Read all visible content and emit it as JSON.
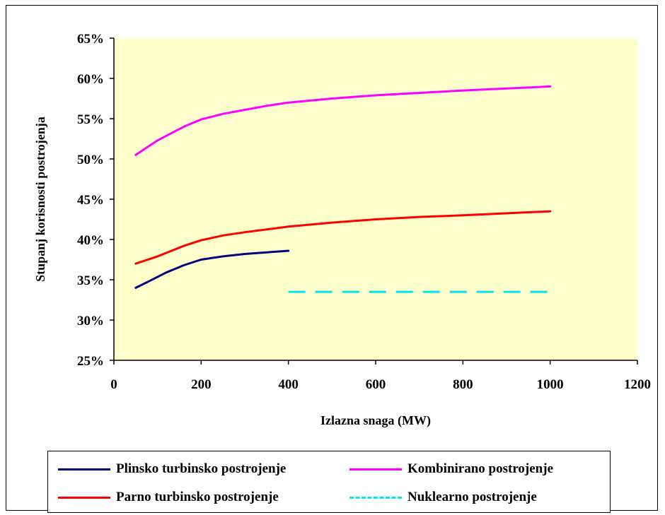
{
  "chart_data": {
    "type": "line",
    "xlabel": "Izlazna snaga (MW)",
    "ylabel": "Stupanj korisnosti postrojenja",
    "xlim": [
      0,
      1200
    ],
    "ylim": [
      25,
      65
    ],
    "x_ticks": [
      0,
      200,
      400,
      600,
      800,
      1000,
      1200
    ],
    "y_ticks": [
      25,
      30,
      35,
      40,
      45,
      50,
      55,
      60,
      65
    ],
    "y_tick_labels": [
      "25%",
      "30%",
      "35%",
      "40%",
      "45%",
      "50%",
      "55%",
      "60%",
      "65%"
    ],
    "plot_background": "#ffffcc",
    "grid": false,
    "legend_position": "bottom",
    "series": [
      {
        "name": "Plinsko turbinsko postrojenje",
        "color": "#000080",
        "dash": false,
        "points": [
          [
            50,
            34.0
          ],
          [
            80,
            34.8
          ],
          [
            120,
            35.9
          ],
          [
            160,
            36.8
          ],
          [
            200,
            37.5
          ],
          [
            250,
            37.9
          ],
          [
            300,
            38.2
          ],
          [
            350,
            38.4
          ],
          [
            400,
            38.6
          ]
        ]
      },
      {
        "name": "Kombinirano postrojenje",
        "color": "#ff00ff",
        "dash": false,
        "points": [
          [
            50,
            50.5
          ],
          [
            100,
            52.3
          ],
          [
            160,
            54.0
          ],
          [
            200,
            54.9
          ],
          [
            250,
            55.6
          ],
          [
            300,
            56.1
          ],
          [
            350,
            56.6
          ],
          [
            400,
            57.0
          ],
          [
            500,
            57.5
          ],
          [
            600,
            57.9
          ],
          [
            700,
            58.2
          ],
          [
            800,
            58.5
          ],
          [
            1000,
            59.0
          ]
        ]
      },
      {
        "name": "Parno turbinsko postrojenje",
        "color": "#ff0000",
        "dash": false,
        "points": [
          [
            50,
            37.0
          ],
          [
            100,
            37.9
          ],
          [
            160,
            39.2
          ],
          [
            200,
            39.9
          ],
          [
            250,
            40.5
          ],
          [
            300,
            40.9
          ],
          [
            400,
            41.6
          ],
          [
            500,
            42.1
          ],
          [
            600,
            42.5
          ],
          [
            700,
            42.8
          ],
          [
            800,
            43.0
          ],
          [
            1000,
            43.5
          ]
        ]
      },
      {
        "name": "Nuklearno postrojenje",
        "color": "#00e5ee",
        "dash": true,
        "points": [
          [
            400,
            33.5
          ],
          [
            1000,
            33.5
          ]
        ]
      }
    ]
  }
}
